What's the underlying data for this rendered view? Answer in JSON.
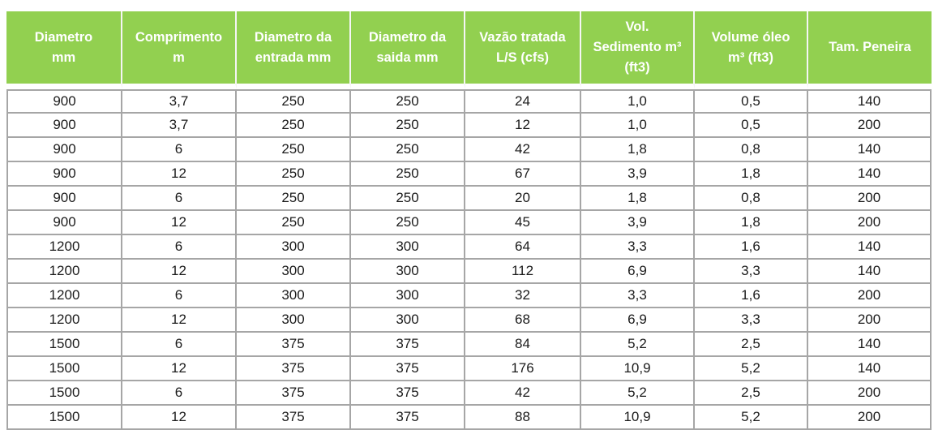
{
  "colors": {
    "header_bg": "#92D050",
    "header_text": "#FFFFFF",
    "grid_border": "#A6A6A6",
    "cell_text": "#1B1B1B",
    "page_bg": "#FFFFFF"
  },
  "table": {
    "headers": [
      {
        "id": "diametro-mm",
        "label": "Diametro\nmm"
      },
      {
        "id": "comprimento-m",
        "label": "Comprimento\nm"
      },
      {
        "id": "diametro-entrada",
        "label": "Diametro da\nentrada mm"
      },
      {
        "id": "diametro-saida",
        "label": "Diametro da\nsaida mm"
      },
      {
        "id": "vazao-tratada",
        "label": "Vazão tratada\nL/S (cfs)"
      },
      {
        "id": "vol-sedimento",
        "label": "Vol.\nSedimento m³\n(ft3)"
      },
      {
        "id": "volume-oleo",
        "label": "Volume óleo\nm³ (ft3)"
      },
      {
        "id": "tam-peneira",
        "label": "Tam. Peneira"
      }
    ],
    "rows": [
      [
        "900",
        "3,7",
        "250",
        "250",
        "24",
        "1,0",
        "0,5",
        "140"
      ],
      [
        "900",
        "3,7",
        "250",
        "250",
        "12",
        "1,0",
        "0,5",
        "200"
      ],
      [
        "900",
        "6",
        "250",
        "250",
        "42",
        "1,8",
        "0,8",
        "140"
      ],
      [
        "900",
        "12",
        "250",
        "250",
        "67",
        "3,9",
        "1,8",
        "140"
      ],
      [
        "900",
        "6",
        "250",
        "250",
        "20",
        "1,8",
        "0,8",
        "200"
      ],
      [
        "900",
        "12",
        "250",
        "250",
        "45",
        "3,9",
        "1,8",
        "200"
      ],
      [
        "1200",
        "6",
        "300",
        "300",
        "64",
        "3,3",
        "1,6",
        "140"
      ],
      [
        "1200",
        "12",
        "300",
        "300",
        "112",
        "6,9",
        "3,3",
        "140"
      ],
      [
        "1200",
        "6",
        "300",
        "300",
        "32",
        "3,3",
        "1,6",
        "200"
      ],
      [
        "1200",
        "12",
        "300",
        "300",
        "68",
        "6,9",
        "3,3",
        "200"
      ],
      [
        "1500",
        "6",
        "375",
        "375",
        "84",
        "5,2",
        "2,5",
        "140"
      ],
      [
        "1500",
        "12",
        "375",
        "375",
        "176",
        "10,9",
        "5,2",
        "140"
      ],
      [
        "1500",
        "6",
        "375",
        "375",
        "42",
        "5,2",
        "2,5",
        "200"
      ],
      [
        "1500",
        "12",
        "375",
        "375",
        "88",
        "10,9",
        "5,2",
        "200"
      ]
    ]
  },
  "chart_data": {
    "type": "table",
    "title": "",
    "columns": [
      "Diametro mm",
      "Comprimento m",
      "Diametro da entrada mm",
      "Diametro da saida mm",
      "Vazão tratada L/S (cfs)",
      "Vol. Sedimento m³ (ft3)",
      "Volume óleo m³ (ft3)",
      "Tam. Peneira"
    ],
    "rows": [
      [
        "900",
        "3,7",
        "250",
        "250",
        "24",
        "1,0",
        "0,5",
        "140"
      ],
      [
        "900",
        "3,7",
        "250",
        "250",
        "12",
        "1,0",
        "0,5",
        "200"
      ],
      [
        "900",
        "6",
        "250",
        "250",
        "42",
        "1,8",
        "0,8",
        "140"
      ],
      [
        "900",
        "12",
        "250",
        "250",
        "67",
        "3,9",
        "1,8",
        "140"
      ],
      [
        "900",
        "6",
        "250",
        "250",
        "20",
        "1,8",
        "0,8",
        "200"
      ],
      [
        "900",
        "12",
        "250",
        "250",
        "45",
        "3,9",
        "1,8",
        "200"
      ],
      [
        "1200",
        "6",
        "300",
        "300",
        "64",
        "3,3",
        "1,6",
        "140"
      ],
      [
        "1200",
        "12",
        "300",
        "300",
        "112",
        "6,9",
        "3,3",
        "140"
      ],
      [
        "1200",
        "6",
        "300",
        "300",
        "32",
        "3,3",
        "1,6",
        "200"
      ],
      [
        "1200",
        "12",
        "300",
        "300",
        "68",
        "6,9",
        "3,3",
        "200"
      ],
      [
        "1500",
        "6",
        "375",
        "375",
        "84",
        "5,2",
        "2,5",
        "140"
      ],
      [
        "1500",
        "12",
        "375",
        "375",
        "176",
        "10,9",
        "5,2",
        "140"
      ],
      [
        "1500",
        "6",
        "375",
        "375",
        "42",
        "5,2",
        "2,5",
        "200"
      ],
      [
        "1500",
        "12",
        "375",
        "375",
        "88",
        "10,9",
        "5,2",
        "200"
      ]
    ]
  }
}
